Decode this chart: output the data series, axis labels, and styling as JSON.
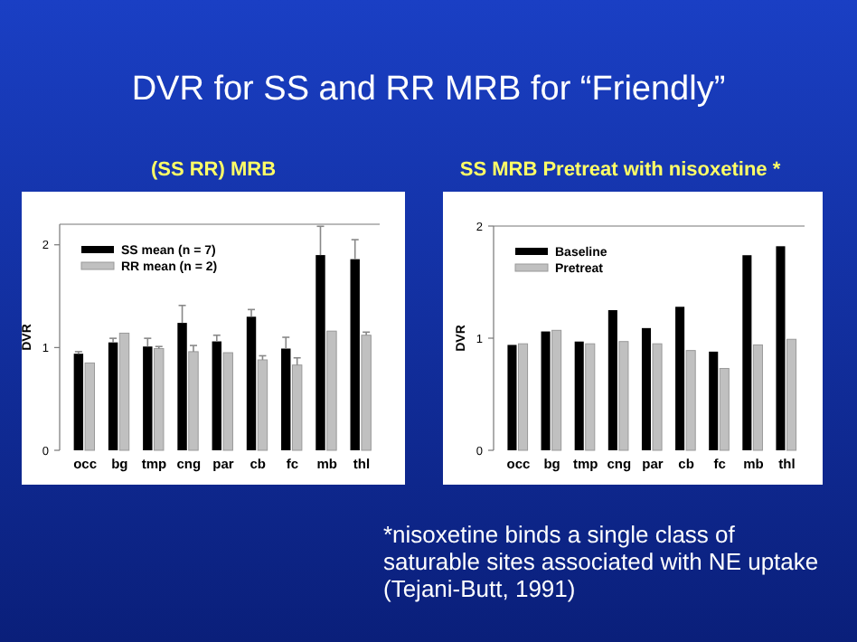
{
  "chart_data": [
    {
      "type": "bar",
      "title": "(SS RR) MRB",
      "ylabel": "DVR",
      "categories": [
        "occ",
        "bg",
        "tmp",
        "cng",
        "par",
        "cb",
        "fc",
        "mb",
        "thl"
      ],
      "annotations": [
        "DVR for SS and RR MRB for “Friendly”"
      ],
      "series": [
        {
          "name": "SS mean (n = 7)",
          "color": "#000000",
          "values": [
            0.94,
            1.05,
            1.01,
            1.24,
            1.06,
            1.3,
            0.99,
            1.9,
            1.86
          ],
          "errors": [
            [
              0.94,
              0.96
            ],
            [
              1.05,
              1.09
            ],
            [
              1.01,
              1.09
            ],
            [
              1.24,
              1.41
            ],
            [
              1.06,
              1.12
            ],
            [
              1.3,
              1.37
            ],
            [
              0.99,
              1.1
            ],
            [
              1.9,
              2.18
            ],
            [
              1.86,
              2.05
            ]
          ]
        },
        {
          "name": "RR mean (n = 2)",
          "color": "#c0c0c0",
          "values": [
            0.85,
            1.14,
            0.99,
            0.96,
            0.95,
            0.88,
            0.83,
            1.16,
            1.12
          ],
          "errors": [
            null,
            null,
            [
              0.99,
              1.01
            ],
            [
              0.96,
              1.02
            ],
            null,
            [
              0.88,
              0.92
            ],
            [
              0.83,
              0.9
            ],
            null,
            [
              1.12,
              1.15
            ]
          ]
        }
      ],
      "ylim": [
        0,
        2.2
      ],
      "yticks": [
        0,
        1,
        2
      ],
      "legend": "top left",
      "grid": false
    },
    {
      "type": "bar",
      "title": "SS MRB Pretreat with nisoxetine *",
      "ylabel": "DVR",
      "categories": [
        "occ",
        "bg",
        "tmp",
        "cng",
        "par",
        "cb",
        "fc",
        "mb",
        "thl"
      ],
      "annotations": [
        "*nisoxetine binds a single class of",
        "saturable sites associated with NE uptake",
        "(Tejani-Butt, 1991)"
      ],
      "series": [
        {
          "name": "Baseline",
          "color": "#000000",
          "values": [
            0.94,
            1.06,
            0.97,
            1.25,
            1.09,
            1.28,
            0.88,
            1.74,
            1.82
          ]
        },
        {
          "name": "Pretreat",
          "color": "#c0c0c0",
          "values": [
            0.95,
            1.07,
            0.95,
            0.97,
            0.95,
            0.89,
            0.73,
            0.94,
            0.99
          ]
        }
      ],
      "ylim": [
        0,
        2
      ],
      "yticks": [
        0,
        1,
        2
      ],
      "legend": "top left",
      "grid": false
    }
  ]
}
